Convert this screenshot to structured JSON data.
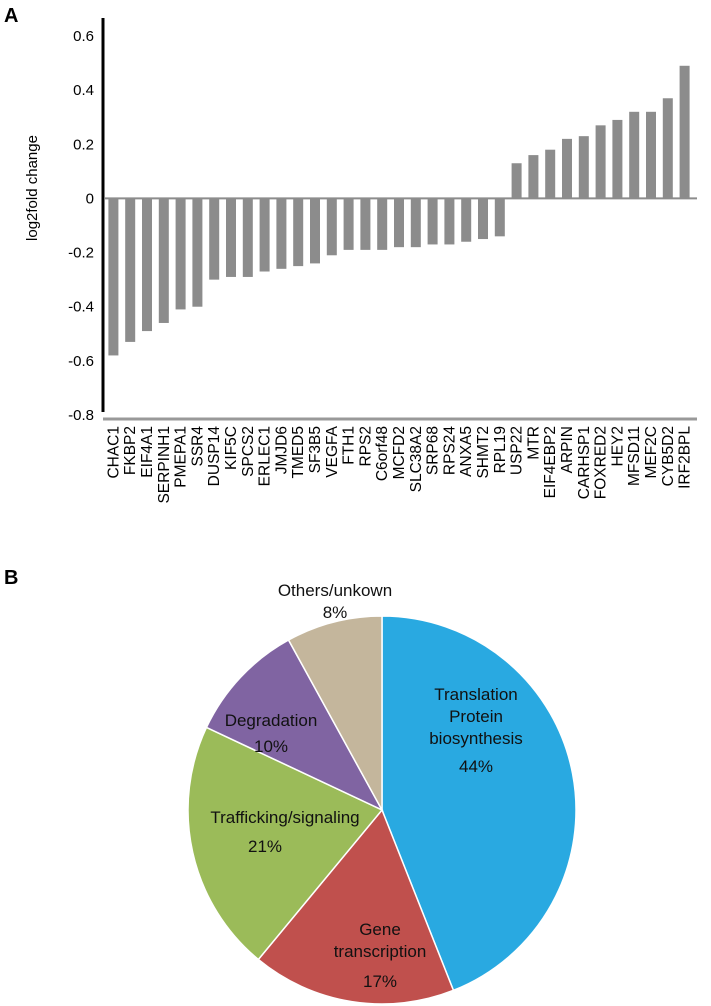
{
  "panels": {
    "a": "A",
    "b": "B"
  },
  "chart_data": [
    {
      "type": "bar",
      "ylabel": "log2fold change",
      "ylim": [
        -0.8,
        0.6
      ],
      "yticks": [
        0.6,
        0.4,
        0.2,
        0,
        -0.2,
        -0.4,
        -0.6,
        -0.8
      ],
      "ytick_labels": [
        "0.6",
        "0.4",
        "0.2",
        "0",
        "-0.2",
        "-0.4",
        "-0.6",
        "-0.8"
      ],
      "bar_color": "#8c8c8c",
      "categories": [
        "CHAC1",
        "FKBP2",
        "EIF4A1",
        "SERPINH1",
        "PMEPA1",
        "SSR4",
        "DUSP14",
        "KIF5C",
        "SPCS2",
        "ERLEC1",
        "JMJD6",
        "TMED5",
        "SF3B5",
        "VEGFA",
        "FTH1",
        "RPS2",
        "C6orf48",
        "MCFD2",
        "SLC38A2",
        "SRP68",
        "RPS24",
        "ANXA5",
        "SHMT2",
        "RPL19",
        "USP22",
        "MTR",
        "EIF4EBP2",
        "ARPIN",
        "CARHSP1",
        "FOXRED2",
        "HEY2",
        "MFSD11",
        "MEF2C",
        "CYB5D2",
        "IRF2BPL"
      ],
      "values": [
        -0.58,
        -0.53,
        -0.49,
        -0.46,
        -0.41,
        -0.4,
        -0.3,
        -0.29,
        -0.29,
        -0.27,
        -0.26,
        -0.25,
        -0.24,
        -0.21,
        -0.19,
        -0.19,
        -0.19,
        -0.18,
        -0.18,
        -0.17,
        -0.17,
        -0.16,
        -0.15,
        -0.14,
        0.13,
        0.16,
        0.18,
        0.22,
        0.23,
        0.27,
        0.29,
        0.32,
        0.32,
        0.37,
        0.49
      ]
    },
    {
      "type": "pie",
      "slices": [
        {
          "label": "Translation\nProtein\nbiosynthesis",
          "percent_label": "44%",
          "value": 44,
          "color": "#29a9e1"
        },
        {
          "label": "Gene\ntranscription",
          "percent_label": "17%",
          "value": 17,
          "color": "#c0504d"
        },
        {
          "label": "Trafficking/signaling",
          "percent_label": "21%",
          "value": 21,
          "color": "#9bbb59"
        },
        {
          "label": "Degradation",
          "percent_label": "10%",
          "value": 10,
          "color": "#8064a2"
        },
        {
          "label": "Others/unkown",
          "percent_label": "8%",
          "value": 8,
          "color": "#c4b69c"
        }
      ]
    }
  ]
}
